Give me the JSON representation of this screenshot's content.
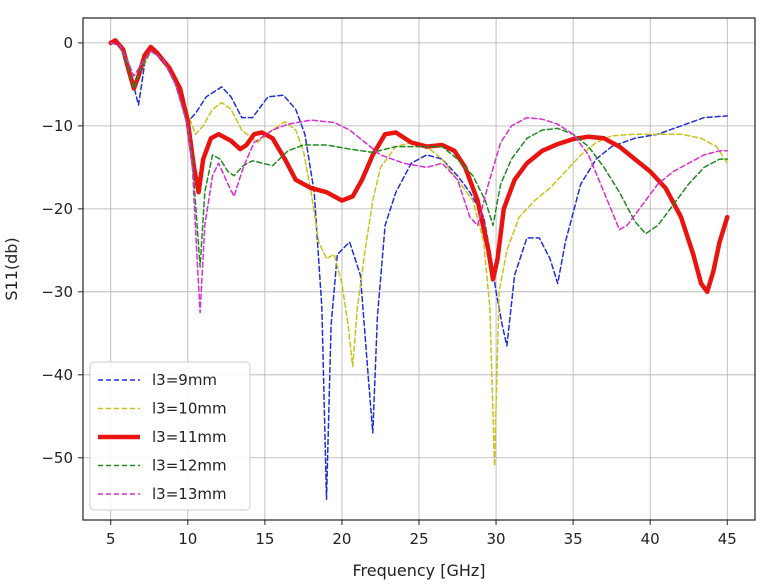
{
  "chart_data": {
    "type": "line",
    "title": "",
    "xlabel": "Frequency [GHz]",
    "ylabel": "S11(db)",
    "xlim": [
      3.2,
      46.8
    ],
    "ylim": [
      -57.5,
      3
    ],
    "xticks": [
      5,
      10,
      15,
      20,
      25,
      30,
      35,
      40,
      45
    ],
    "yticks": [
      0,
      -10,
      -20,
      -30,
      -40,
      -50
    ],
    "grid": true,
    "legend_position": "lower-left",
    "series": [
      {
        "name": "l3=9mm",
        "color": "#1f2fd6",
        "style": "dashed",
        "width": 1.5,
        "points": [
          [
            5,
            0
          ],
          [
            5.6,
            -0.3
          ],
          [
            6.2,
            -3
          ],
          [
            6.8,
            -7.5
          ],
          [
            7.2,
            -2.5
          ],
          [
            7.6,
            -1
          ],
          [
            8.2,
            -1.5
          ],
          [
            9,
            -3.5
          ],
          [
            9.6,
            -7
          ],
          [
            10,
            -9.5
          ],
          [
            10.5,
            -8.5
          ],
          [
            11.2,
            -6.5
          ],
          [
            12.2,
            -5.3
          ],
          [
            12.8,
            -6.5
          ],
          [
            13.5,
            -9
          ],
          [
            14.2,
            -9
          ],
          [
            15.2,
            -6.5
          ],
          [
            16.2,
            -6.3
          ],
          [
            17,
            -8
          ],
          [
            17.6,
            -11
          ],
          [
            18.2,
            -18
          ],
          [
            18.7,
            -32
          ],
          [
            19,
            -55
          ],
          [
            19.3,
            -34
          ],
          [
            19.7,
            -25.5
          ],
          [
            20.5,
            -24
          ],
          [
            21.2,
            -28
          ],
          [
            21.7,
            -40
          ],
          [
            22,
            -47
          ],
          [
            22.3,
            -33
          ],
          [
            22.8,
            -22
          ],
          [
            23.5,
            -18
          ],
          [
            24.5,
            -14.5
          ],
          [
            25.5,
            -13.5
          ],
          [
            26.5,
            -14
          ],
          [
            27.5,
            -16
          ],
          [
            28.3,
            -18
          ],
          [
            29.2,
            -21
          ],
          [
            29.7,
            -26
          ],
          [
            30,
            -30
          ],
          [
            30.4,
            -34
          ],
          [
            30.7,
            -36.5
          ],
          [
            31.2,
            -28
          ],
          [
            32,
            -23.5
          ],
          [
            32.8,
            -23.5
          ],
          [
            33.5,
            -26
          ],
          [
            34,
            -29
          ],
          [
            34.5,
            -24
          ],
          [
            35.5,
            -17
          ],
          [
            36.5,
            -14
          ],
          [
            37.5,
            -12.5
          ],
          [
            39,
            -11.5
          ],
          [
            40.5,
            -11
          ],
          [
            42,
            -10
          ],
          [
            43.5,
            -9
          ],
          [
            45,
            -8.8
          ]
        ]
      },
      {
        "name": "l3=10mm",
        "color": "#c9c21a",
        "style": "dashed",
        "width": 1.5,
        "points": [
          [
            5,
            0
          ],
          [
            5.6,
            -0.3
          ],
          [
            6.1,
            -2.5
          ],
          [
            6.6,
            -5.5
          ],
          [
            7.1,
            -2.8
          ],
          [
            7.6,
            -1
          ],
          [
            8.4,
            -2
          ],
          [
            9.2,
            -4.5
          ],
          [
            10,
            -8.5
          ],
          [
            10.5,
            -11
          ],
          [
            11,
            -10
          ],
          [
            11.6,
            -8
          ],
          [
            12.2,
            -7.2
          ],
          [
            12.8,
            -8
          ],
          [
            13.5,
            -10.5
          ],
          [
            14.5,
            -12
          ],
          [
            15.5,
            -10.5
          ],
          [
            16.3,
            -9.5
          ],
          [
            17,
            -10.5
          ],
          [
            17.5,
            -13
          ],
          [
            18,
            -18
          ],
          [
            18.5,
            -24
          ],
          [
            19,
            -26
          ],
          [
            19.5,
            -25.5
          ],
          [
            20,
            -29
          ],
          [
            20.4,
            -34
          ],
          [
            20.7,
            -39
          ],
          [
            21,
            -32
          ],
          [
            21.5,
            -25
          ],
          [
            22,
            -19
          ],
          [
            22.5,
            -15
          ],
          [
            23.5,
            -12.5
          ],
          [
            24.5,
            -12
          ],
          [
            25.5,
            -12.5
          ],
          [
            26.5,
            -14
          ],
          [
            27.5,
            -16.5
          ],
          [
            28.5,
            -19
          ],
          [
            29.2,
            -24
          ],
          [
            29.6,
            -32
          ],
          [
            29.9,
            -51
          ],
          [
            30.2,
            -30
          ],
          [
            30.7,
            -25
          ],
          [
            31.5,
            -21
          ],
          [
            32.5,
            -19
          ],
          [
            33.5,
            -17.5
          ],
          [
            34.5,
            -15.5
          ],
          [
            35.5,
            -13.5
          ],
          [
            36.5,
            -12
          ],
          [
            37.5,
            -11.2
          ],
          [
            39,
            -11
          ],
          [
            40.5,
            -11
          ],
          [
            42,
            -11
          ],
          [
            43.3,
            -11.5
          ],
          [
            44.3,
            -12.5
          ],
          [
            45,
            -14.5
          ]
        ]
      },
      {
        "name": "l3=11mm",
        "color": "#e8140f",
        "style": "solid",
        "width": 4.5,
        "points": [
          [
            5,
            0
          ],
          [
            5.3,
            0.3
          ],
          [
            5.8,
            -0.8
          ],
          [
            6.2,
            -3.5
          ],
          [
            6.5,
            -5.5
          ],
          [
            6.8,
            -4
          ],
          [
            7.2,
            -1.5
          ],
          [
            7.6,
            -0.5
          ],
          [
            8,
            -1.2
          ],
          [
            8.8,
            -3
          ],
          [
            9.5,
            -5.5
          ],
          [
            10,
            -9.5
          ],
          [
            10.4,
            -15
          ],
          [
            10.7,
            -18
          ],
          [
            11,
            -14
          ],
          [
            11.5,
            -11.5
          ],
          [
            12,
            -11
          ],
          [
            12.8,
            -11.8
          ],
          [
            13.4,
            -12.8
          ],
          [
            13.8,
            -12.3
          ],
          [
            14.3,
            -11
          ],
          [
            14.8,
            -10.8
          ],
          [
            15.5,
            -11.5
          ],
          [
            16.3,
            -14
          ],
          [
            17,
            -16.5
          ],
          [
            18,
            -17.5
          ],
          [
            19,
            -18
          ],
          [
            20,
            -19
          ],
          [
            20.7,
            -18.5
          ],
          [
            21.3,
            -16.5
          ],
          [
            22,
            -13.5
          ],
          [
            22.8,
            -11
          ],
          [
            23.5,
            -10.8
          ],
          [
            24.5,
            -12
          ],
          [
            25.5,
            -12.5
          ],
          [
            26.5,
            -12.3
          ],
          [
            27.3,
            -13
          ],
          [
            28,
            -15
          ],
          [
            28.8,
            -19
          ],
          [
            29.5,
            -25
          ],
          [
            29.8,
            -28.5
          ],
          [
            30.1,
            -26
          ],
          [
            30.5,
            -20
          ],
          [
            31.2,
            -16.5
          ],
          [
            32,
            -14.5
          ],
          [
            33,
            -13
          ],
          [
            34,
            -12.2
          ],
          [
            35,
            -11.6
          ],
          [
            36,
            -11.3
          ],
          [
            37,
            -11.5
          ],
          [
            38,
            -12.5
          ],
          [
            39,
            -14
          ],
          [
            40,
            -15.5
          ],
          [
            41,
            -17.5
          ],
          [
            42,
            -21
          ],
          [
            42.8,
            -25.5
          ],
          [
            43.3,
            -29
          ],
          [
            43.7,
            -30
          ],
          [
            44.1,
            -27.5
          ],
          [
            44.5,
            -24
          ],
          [
            45,
            -21
          ]
        ]
      },
      {
        "name": "l3=12mm",
        "color": "#1f8a1f",
        "style": "dashed",
        "width": 1.5,
        "points": [
          [
            5,
            0
          ],
          [
            5.6,
            -0.3
          ],
          [
            6.1,
            -2.8
          ],
          [
            6.5,
            -5.5
          ],
          [
            7,
            -2.8
          ],
          [
            7.6,
            -1
          ],
          [
            8.4,
            -2
          ],
          [
            9.2,
            -5
          ],
          [
            10,
            -10
          ],
          [
            10.3,
            -14
          ],
          [
            10.6,
            -22
          ],
          [
            10.8,
            -27
          ],
          [
            11.1,
            -18
          ],
          [
            11.6,
            -13.5
          ],
          [
            12.1,
            -14
          ],
          [
            12.6,
            -15.5
          ],
          [
            13,
            -16
          ],
          [
            13.6,
            -14.8
          ],
          [
            14.2,
            -14.2
          ],
          [
            15.5,
            -14.8
          ],
          [
            16.5,
            -13
          ],
          [
            17.5,
            -12.3
          ],
          [
            19,
            -12.3
          ],
          [
            20.5,
            -12.8
          ],
          [
            22,
            -13.2
          ],
          [
            23.5,
            -12.5
          ],
          [
            25,
            -12.5
          ],
          [
            26.5,
            -12.5
          ],
          [
            27.5,
            -14
          ],
          [
            28.5,
            -16
          ],
          [
            29.3,
            -19
          ],
          [
            29.8,
            -22
          ],
          [
            30.3,
            -17
          ],
          [
            31,
            -14
          ],
          [
            32,
            -11.5
          ],
          [
            33,
            -10.5
          ],
          [
            34,
            -10.3
          ],
          [
            35,
            -11
          ],
          [
            36,
            -12.5
          ],
          [
            37,
            -15
          ],
          [
            38,
            -18
          ],
          [
            39,
            -21.5
          ],
          [
            39.7,
            -23
          ],
          [
            40.5,
            -22
          ],
          [
            41.5,
            -19.5
          ],
          [
            42.5,
            -17
          ],
          [
            43.5,
            -15
          ],
          [
            44.5,
            -14
          ],
          [
            45,
            -14
          ]
        ]
      },
      {
        "name": "l3=13mm",
        "color": "#d92ed0",
        "style": "dashed",
        "width": 1.5,
        "points": [
          [
            5,
            0
          ],
          [
            5.6,
            -0.3
          ],
          [
            6.1,
            -2.2
          ],
          [
            6.5,
            -4
          ],
          [
            7,
            -2.5
          ],
          [
            7.6,
            -1
          ],
          [
            8.4,
            -2
          ],
          [
            9.2,
            -5
          ],
          [
            10,
            -10
          ],
          [
            10.3,
            -15
          ],
          [
            10.6,
            -26
          ],
          [
            10.8,
            -32.5
          ],
          [
            11.1,
            -22
          ],
          [
            11.6,
            -16
          ],
          [
            12,
            -14.5
          ],
          [
            12.6,
            -17
          ],
          [
            13,
            -18.5
          ],
          [
            13.6,
            -15
          ],
          [
            14.3,
            -12
          ],
          [
            15.5,
            -10.5
          ],
          [
            16.5,
            -9.8
          ],
          [
            18,
            -9.3
          ],
          [
            19.5,
            -9.6
          ],
          [
            20.5,
            -10.5
          ],
          [
            21.5,
            -12
          ],
          [
            22.5,
            -13.5
          ],
          [
            24,
            -14.5
          ],
          [
            25.5,
            -15
          ],
          [
            26.5,
            -14.5
          ],
          [
            27.5,
            -16.5
          ],
          [
            28.3,
            -21
          ],
          [
            28.8,
            -22
          ],
          [
            29.5,
            -17
          ],
          [
            30.3,
            -12
          ],
          [
            31,
            -10
          ],
          [
            32,
            -9
          ],
          [
            33,
            -9.2
          ],
          [
            34,
            -9.8
          ],
          [
            35,
            -11
          ],
          [
            36,
            -13.5
          ],
          [
            37,
            -18
          ],
          [
            38,
            -22.5
          ],
          [
            38.5,
            -22
          ],
          [
            39.5,
            -19.5
          ],
          [
            40.5,
            -17
          ],
          [
            41.5,
            -15.5
          ],
          [
            42.5,
            -14.5
          ],
          [
            43.5,
            -13.5
          ],
          [
            44.5,
            -13
          ],
          [
            45,
            -13
          ]
        ]
      }
    ]
  }
}
